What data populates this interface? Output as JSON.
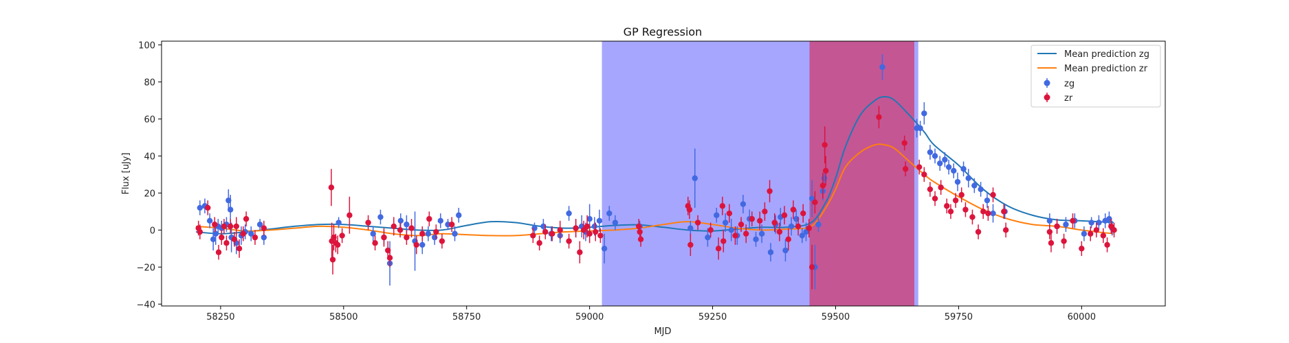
{
  "chart_data": {
    "type": "scatter",
    "title": "GP Regression",
    "xlabel": "MJD",
    "ylabel": "Flux [uJy]",
    "xlim": [
      58130,
      60170
    ],
    "ylim": [
      -41,
      102
    ],
    "xticks": [
      58250,
      58500,
      58750,
      59000,
      59250,
      59500,
      59750,
      60000
    ],
    "yticks": [
      -40,
      -20,
      0,
      20,
      40,
      60,
      80,
      100
    ],
    "grid": false,
    "legend_position": "top-right",
    "shaded_regions": [
      {
        "x0": 59025,
        "x1": 59668,
        "color": "#0000ff",
        "opacity": 0.35
      },
      {
        "x0": 59447,
        "x1": 59660,
        "color": "#dc143c",
        "opacity": 0.55
      }
    ],
    "lines": [
      {
        "name": "Mean prediction zg",
        "color": "#1f77b4",
        "x": [
          58200,
          58250,
          58300,
          58350,
          58400,
          58450,
          58500,
          58550,
          58600,
          58650,
          58700,
          58750,
          58800,
          58850,
          58900,
          58950,
          59000,
          59050,
          59100,
          59150,
          59200,
          59250,
          59300,
          59350,
          59400,
          59450,
          59480,
          59500,
          59520,
          59550,
          59580,
          59600,
          59620,
          59650,
          59680,
          59700,
          59750,
          59800,
          59850,
          59900,
          59950,
          60000,
          60065
        ],
        "y": [
          -1,
          -2,
          -1,
          0.5,
          2,
          3,
          3,
          2,
          1,
          0,
          0,
          2.5,
          4.5,
          4,
          2,
          1,
          1.5,
          2.5,
          2.8,
          1.5,
          0,
          -0.5,
          0.5,
          1.5,
          1.5,
          4,
          15,
          28,
          45,
          62,
          70,
          72,
          70,
          62,
          53,
          46,
          35,
          22,
          13,
          8,
          5.5,
          5,
          4
        ]
      },
      {
        "name": "Mean prediction zr",
        "color": "#ff7f0e",
        "x": [
          58200,
          58250,
          58300,
          58350,
          58400,
          58450,
          58500,
          58550,
          58600,
          58650,
          58700,
          58750,
          58800,
          58850,
          58900,
          58950,
          59000,
          59050,
          59100,
          59150,
          59200,
          59250,
          59300,
          59350,
          59400,
          59450,
          59480,
          59500,
          59520,
          59550,
          59580,
          59600,
          59620,
          59650,
          59680,
          59700,
          59750,
          59800,
          59850,
          59900,
          59950,
          60000,
          60065
        ],
        "y": [
          2,
          1,
          -0.5,
          0,
          1,
          2,
          1.5,
          0,
          -2,
          -3,
          -2,
          -2.5,
          -3,
          -3,
          -2,
          -1,
          -0.5,
          0,
          1,
          3,
          4.5,
          3,
          1,
          0,
          0.5,
          2,
          12,
          22,
          34,
          42,
          46,
          46,
          44,
          37,
          30,
          26,
          18,
          11,
          6,
          3,
          2,
          0,
          -2
        ]
      }
    ],
    "series": [
      {
        "name": "zg",
        "color": "#4169e1",
        "points": [
          [
            58208,
            12,
            4
          ],
          [
            58218,
            13,
            4
          ],
          [
            58228,
            5,
            4
          ],
          [
            58235,
            -5,
            6
          ],
          [
            58240,
            -2,
            6
          ],
          [
            58245,
            2,
            4
          ],
          [
            58252,
            1,
            4
          ],
          [
            58262,
            3,
            4
          ],
          [
            58266,
            16,
            6
          ],
          [
            58270,
            11,
            8
          ],
          [
            58272,
            -4,
            8
          ],
          [
            58282,
            -7,
            6
          ],
          [
            58292,
            -3,
            5
          ],
          [
            58300,
            -1,
            4
          ],
          [
            58312,
            -2,
            4
          ],
          [
            58330,
            3,
            3
          ],
          [
            58338,
            -4,
            4
          ],
          [
            58490,
            4,
            3
          ],
          [
            58560,
            -2,
            4
          ],
          [
            58575,
            7,
            4
          ],
          [
            58582,
            -4,
            4
          ],
          [
            58594,
            -18,
            12
          ],
          [
            58616,
            5,
            4
          ],
          [
            58628,
            3,
            5
          ],
          [
            58645,
            -6,
            16
          ],
          [
            58660,
            -8,
            5
          ],
          [
            58672,
            -2,
            4
          ],
          [
            58685,
            -4,
            4
          ],
          [
            58697,
            5,
            4
          ],
          [
            58712,
            3,
            3
          ],
          [
            58726,
            -2,
            4
          ],
          [
            58734,
            8,
            4
          ],
          [
            58888,
            1,
            3
          ],
          [
            58906,
            2,
            4
          ],
          [
            58922,
            -2,
            4
          ],
          [
            58940,
            -3,
            4
          ],
          [
            58958,
            9,
            4
          ],
          [
            58972,
            1,
            5
          ],
          [
            58984,
            2,
            6
          ],
          [
            58992,
            -1,
            5
          ],
          [
            59000,
            6,
            8
          ],
          [
            59010,
            2,
            5
          ],
          [
            59020,
            5,
            6
          ],
          [
            59030,
            -10,
            8
          ],
          [
            59040,
            9,
            4
          ],
          [
            59052,
            4,
            4
          ],
          [
            59102,
            2,
            3
          ],
          [
            59205,
            1,
            4
          ],
          [
            59214,
            28,
            16
          ],
          [
            59240,
            -4,
            5
          ],
          [
            59258,
            8,
            4
          ],
          [
            59276,
            4,
            5
          ],
          [
            59288,
            0,
            6
          ],
          [
            59300,
            -3,
            5
          ],
          [
            59312,
            14,
            5
          ],
          [
            59325,
            6,
            5
          ],
          [
            59338,
            -5,
            4
          ],
          [
            59350,
            -2,
            5
          ],
          [
            59368,
            -12,
            5
          ],
          [
            59378,
            3,
            5
          ],
          [
            59388,
            7,
            5
          ],
          [
            59398,
            -11,
            6
          ],
          [
            59410,
            2,
            5
          ],
          [
            59420,
            6,
            5
          ],
          [
            59432,
            -3,
            4
          ],
          [
            59440,
            -1,
            5
          ],
          [
            59452,
            17,
            10
          ],
          [
            59458,
            -20,
            12
          ],
          [
            59465,
            3,
            4
          ],
          [
            59474,
            21,
            5
          ],
          [
            59477,
            28,
            4
          ],
          [
            59595,
            88,
            7
          ],
          [
            59665,
            55,
            5
          ],
          [
            59672,
            55,
            4
          ],
          [
            59680,
            63,
            6
          ],
          [
            59692,
            42,
            4
          ],
          [
            59702,
            40,
            4
          ],
          [
            59712,
            36,
            4
          ],
          [
            59722,
            38,
            4
          ],
          [
            59730,
            34,
            4
          ],
          [
            59740,
            32,
            4
          ],
          [
            59748,
            26,
            5
          ],
          [
            59760,
            33,
            4
          ],
          [
            59770,
            28,
            5
          ],
          [
            59782,
            24,
            4
          ],
          [
            59795,
            22,
            4
          ],
          [
            59808,
            16,
            4
          ],
          [
            59820,
            9,
            5
          ],
          [
            59844,
            10,
            4
          ],
          [
            59935,
            5,
            4
          ],
          [
            59950,
            2,
            4
          ],
          [
            59968,
            3,
            4
          ],
          [
            59986,
            5,
            4
          ],
          [
            60005,
            -2,
            4
          ],
          [
            60020,
            4,
            3
          ],
          [
            60035,
            4,
            4
          ],
          [
            60048,
            5,
            4
          ],
          [
            60056,
            6,
            4
          ],
          [
            60062,
            1,
            4
          ]
        ]
      },
      {
        "name": "zr",
        "color": "#dc143c",
        "points": [
          [
            58205,
            1,
            4
          ],
          [
            58208,
            -1,
            4
          ],
          [
            58224,
            12,
            4
          ],
          [
            58238,
            3,
            4
          ],
          [
            58246,
            -12,
            4
          ],
          [
            58252,
            -4,
            4
          ],
          [
            58257,
            2,
            4
          ],
          [
            58262,
            -7,
            4
          ],
          [
            58270,
            2,
            4
          ],
          [
            58278,
            -5,
            4
          ],
          [
            58282,
            2,
            5
          ],
          [
            58288,
            -10,
            5
          ],
          [
            58296,
            -2,
            4
          ],
          [
            58302,
            6,
            4
          ],
          [
            58320,
            -4,
            4
          ],
          [
            58338,
            1,
            4
          ],
          [
            58475,
            23,
            10
          ],
          [
            58476,
            -6,
            10
          ],
          [
            58478,
            -16,
            8
          ],
          [
            58480,
            -4,
            7
          ],
          [
            58484,
            -7,
            5
          ],
          [
            58488,
            -8,
            5
          ],
          [
            58497,
            -3,
            4
          ],
          [
            58512,
            8,
            10
          ],
          [
            58550,
            4,
            4
          ],
          [
            58564,
            -7,
            4
          ],
          [
            58582,
            -4,
            5
          ],
          [
            58590,
            -11,
            5
          ],
          [
            58594,
            -15,
            5
          ],
          [
            58602,
            2,
            5
          ],
          [
            58615,
            0,
            4
          ],
          [
            58628,
            -4,
            4
          ],
          [
            58638,
            1,
            5
          ],
          [
            58648,
            -8,
            5
          ],
          [
            58660,
            -2,
            4
          ],
          [
            58674,
            6,
            4
          ],
          [
            58688,
            -1,
            4
          ],
          [
            58700,
            -6,
            4
          ],
          [
            58720,
            3,
            4
          ],
          [
            58885,
            -3,
            4
          ],
          [
            58898,
            -7,
            4
          ],
          [
            58910,
            -1,
            4
          ],
          [
            58924,
            -2,
            4
          ],
          [
            58940,
            0,
            5
          ],
          [
            58958,
            -6,
            4
          ],
          [
            58972,
            1,
            5
          ],
          [
            58980,
            -12,
            6
          ],
          [
            58988,
            0,
            5
          ],
          [
            58995,
            2,
            6
          ],
          [
            59000,
            -2,
            5
          ],
          [
            59012,
            -1,
            5
          ],
          [
            59022,
            -3,
            4
          ],
          [
            59100,
            2,
            4
          ],
          [
            59102,
            -1,
            4
          ],
          [
            59104,
            -5,
            4
          ],
          [
            59200,
            13,
            5
          ],
          [
            59203,
            11,
            5
          ],
          [
            59205,
            -8,
            6
          ],
          [
            59220,
            4,
            4
          ],
          [
            59246,
            0,
            4
          ],
          [
            59262,
            -10,
            6
          ],
          [
            59270,
            13,
            5
          ],
          [
            59272,
            -6,
            6
          ],
          [
            59284,
            9,
            5
          ],
          [
            59296,
            -3,
            5
          ],
          [
            59308,
            3,
            4
          ],
          [
            59318,
            -2,
            5
          ],
          [
            59330,
            6,
            4
          ],
          [
            59346,
            5,
            5
          ],
          [
            59356,
            10,
            5
          ],
          [
            59366,
            21,
            6
          ],
          [
            59376,
            4,
            5
          ],
          [
            59386,
            -1,
            5
          ],
          [
            59396,
            8,
            5
          ],
          [
            59404,
            -5,
            6
          ],
          [
            59414,
            11,
            5
          ],
          [
            59424,
            2,
            5
          ],
          [
            59434,
            9,
            5
          ],
          [
            59446,
            1,
            5
          ],
          [
            59452,
            -20,
            12
          ],
          [
            59458,
            15,
            6
          ],
          [
            59474,
            24,
            7
          ],
          [
            59478,
            46,
            10
          ],
          [
            59480,
            32,
            8
          ],
          [
            59588,
            61,
            6
          ],
          [
            59640,
            47,
            4
          ],
          [
            59642,
            33,
            4
          ],
          [
            59670,
            34,
            4
          ],
          [
            59680,
            30,
            4
          ],
          [
            59692,
            22,
            4
          ],
          [
            59702,
            17,
            4
          ],
          [
            59714,
            23,
            4
          ],
          [
            59726,
            13,
            4
          ],
          [
            59734,
            10,
            4
          ],
          [
            59744,
            16,
            4
          ],
          [
            59756,
            19,
            4
          ],
          [
            59764,
            11,
            4
          ],
          [
            59778,
            7,
            4
          ],
          [
            59790,
            -1,
            4
          ],
          [
            59800,
            10,
            4
          ],
          [
            59810,
            9,
            4
          ],
          [
            59820,
            19,
            4
          ],
          [
            59842,
            10,
            4
          ],
          [
            59846,
            0,
            4
          ],
          [
            59935,
            -1,
            4
          ],
          [
            59938,
            -7,
            5
          ],
          [
            59950,
            2,
            4
          ],
          [
            59964,
            -6,
            4
          ],
          [
            59982,
            5,
            4
          ],
          [
            60000,
            -10,
            4
          ],
          [
            60018,
            -2,
            4
          ],
          [
            60030,
            0,
            4
          ],
          [
            60044,
            -3,
            4
          ],
          [
            60052,
            -8,
            4
          ],
          [
            60060,
            2,
            4
          ],
          [
            60066,
            0,
            4
          ]
        ]
      }
    ],
    "legend": [
      "Mean prediction zg",
      "Mean prediction zr",
      "zg",
      "zr"
    ]
  }
}
